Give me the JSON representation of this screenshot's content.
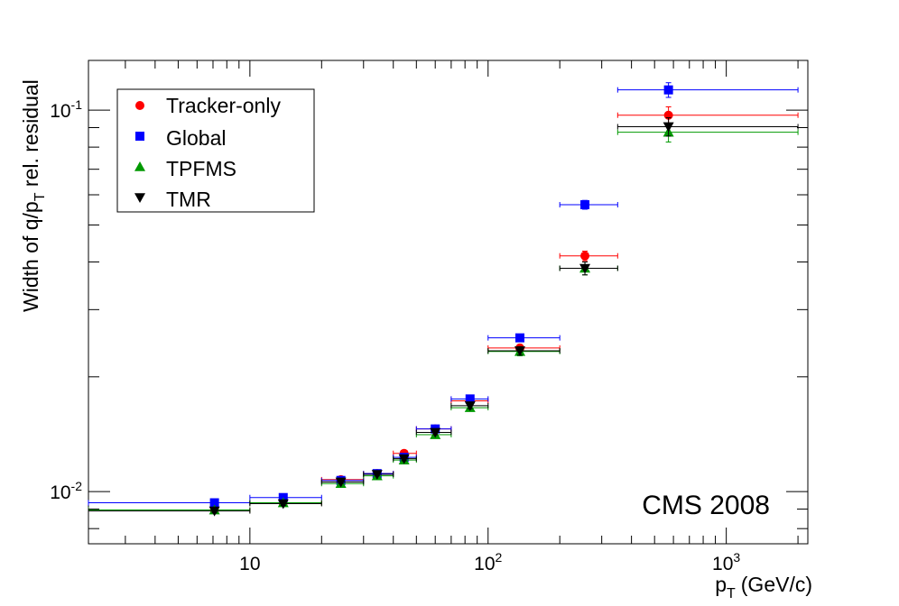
{
  "chart_data": {
    "type": "scatter",
    "title": "",
    "annotation": "CMS 2008",
    "xlabel_main": "p",
    "xlabel_sub": "T",
    "xlabel_units": "(GeV/c)",
    "ylabel_pre": "Width of q/p",
    "ylabel_sub": "T",
    "ylabel_post": " rel. residual",
    "x_scale": "log",
    "y_scale": "log",
    "xlim": [
      2.1,
      2200
    ],
    "ylim": [
      0.0073,
      0.135
    ],
    "x_tick_labels": [
      {
        "value": 10,
        "base": "10",
        "exp": ""
      },
      {
        "value": 100,
        "base": "10",
        "exp": "2"
      },
      {
        "value": 1000,
        "base": "10",
        "exp": "3"
      }
    ],
    "y_tick_labels": [
      {
        "value": 0.01,
        "base": "10",
        "exp": "-2"
      },
      {
        "value": 0.1,
        "base": "10",
        "exp": "-1"
      }
    ],
    "legend_position": "top-left",
    "series": [
      {
        "name": "Tracker-only",
        "marker": "circle",
        "color": "#ff0000",
        "points": [
          {
            "x": 7.1,
            "xlo": 2.1,
            "xhi": 10,
            "y": 0.00895,
            "err": 0.0001
          },
          {
            "x": 13.8,
            "xlo": 10,
            "xhi": 20,
            "y": 0.00935,
            "err": 0.0001
          },
          {
            "x": 24.1,
            "xlo": 20,
            "xhi": 30,
            "y": 0.01075,
            "err": 0.0001
          },
          {
            "x": 34.2,
            "xlo": 30,
            "xhi": 40,
            "y": 0.01115,
            "err": 0.0001
          },
          {
            "x": 44.4,
            "xlo": 40,
            "xhi": 50,
            "y": 0.0126,
            "err": 0.00015
          },
          {
            "x": 60,
            "xlo": 50,
            "xhi": 70,
            "y": 0.0146,
            "err": 0.0002
          },
          {
            "x": 84,
            "xlo": 70,
            "xhi": 100,
            "y": 0.0173,
            "err": 0.0003
          },
          {
            "x": 136,
            "xlo": 100,
            "xhi": 200,
            "y": 0.0238,
            "err": 0.0005
          },
          {
            "x": 255,
            "xlo": 200,
            "xhi": 350,
            "y": 0.0415,
            "err": 0.0012
          },
          {
            "x": 572,
            "xlo": 350,
            "xhi": 2000,
            "y": 0.097,
            "err": 0.005
          }
        ]
      },
      {
        "name": "Global",
        "marker": "square",
        "color": "#0000ff",
        "points": [
          {
            "x": 7.1,
            "xlo": 2.1,
            "xhi": 10,
            "y": 0.00935,
            "err": 0.0001
          },
          {
            "x": 13.8,
            "xlo": 10,
            "xhi": 20,
            "y": 0.00965,
            "err": 0.0001
          },
          {
            "x": 24.1,
            "xlo": 20,
            "xhi": 30,
            "y": 0.0107,
            "err": 0.0001
          },
          {
            "x": 34.2,
            "xlo": 30,
            "xhi": 40,
            "y": 0.01115,
            "err": 0.0001
          },
          {
            "x": 44.4,
            "xlo": 40,
            "xhi": 50,
            "y": 0.0123,
            "err": 0.00015
          },
          {
            "x": 60,
            "xlo": 50,
            "xhi": 70,
            "y": 0.0146,
            "err": 0.0002
          },
          {
            "x": 84,
            "xlo": 70,
            "xhi": 100,
            "y": 0.0175,
            "err": 0.0003
          },
          {
            "x": 136,
            "xlo": 100,
            "xhi": 200,
            "y": 0.0253,
            "err": 0.0005
          },
          {
            "x": 255,
            "xlo": 200,
            "xhi": 350,
            "y": 0.0565,
            "err": 0.0015
          },
          {
            "x": 572,
            "xlo": 350,
            "xhi": 2000,
            "y": 0.113,
            "err": 0.005
          }
        ]
      },
      {
        "name": "TPFMS",
        "marker": "triangle-up",
        "color": "#009900",
        "points": [
          {
            "x": 7.1,
            "xlo": 2.1,
            "xhi": 10,
            "y": 0.00895,
            "err": 0.0001
          },
          {
            "x": 13.8,
            "xlo": 10,
            "xhi": 20,
            "y": 0.00935,
            "err": 0.0001
          },
          {
            "x": 24.1,
            "xlo": 20,
            "xhi": 30,
            "y": 0.0105,
            "err": 0.0001
          },
          {
            "x": 34.2,
            "xlo": 30,
            "xhi": 40,
            "y": 0.011,
            "err": 0.0001
          },
          {
            "x": 44.4,
            "xlo": 40,
            "xhi": 50,
            "y": 0.0121,
            "err": 0.00015
          },
          {
            "x": 60,
            "xlo": 50,
            "xhi": 70,
            "y": 0.0141,
            "err": 0.0002
          },
          {
            "x": 84,
            "xlo": 70,
            "xhi": 100,
            "y": 0.0166,
            "err": 0.0003
          },
          {
            "x": 136,
            "xlo": 100,
            "xhi": 200,
            "y": 0.0233,
            "err": 0.0006
          },
          {
            "x": 255,
            "xlo": 200,
            "xhi": 350,
            "y": 0.0385,
            "err": 0.0015
          },
          {
            "x": 572,
            "xlo": 350,
            "xhi": 2000,
            "y": 0.0875,
            "err": 0.005
          }
        ]
      },
      {
        "name": "TMR",
        "marker": "triangle-down",
        "color": "#000000",
        "points": [
          {
            "x": 7.1,
            "xlo": 2.1,
            "xhi": 10,
            "y": 0.0089,
            "err": 0.0001
          },
          {
            "x": 13.8,
            "xlo": 10,
            "xhi": 20,
            "y": 0.0093,
            "err": 0.0001
          },
          {
            "x": 24.1,
            "xlo": 20,
            "xhi": 30,
            "y": 0.0106,
            "err": 0.0001
          },
          {
            "x": 34.2,
            "xlo": 30,
            "xhi": 40,
            "y": 0.0111,
            "err": 0.0001
          },
          {
            "x": 44.4,
            "xlo": 40,
            "xhi": 50,
            "y": 0.0122,
            "err": 0.00015
          },
          {
            "x": 60,
            "xlo": 50,
            "xhi": 70,
            "y": 0.0143,
            "err": 0.0002
          },
          {
            "x": 84,
            "xlo": 70,
            "xhi": 100,
            "y": 0.0168,
            "err": 0.0003
          },
          {
            "x": 136,
            "xlo": 100,
            "xhi": 200,
            "y": 0.0234,
            "err": 0.0006
          },
          {
            "x": 255,
            "xlo": 200,
            "xhi": 350,
            "y": 0.0385,
            "err": 0.0015
          },
          {
            "x": 572,
            "xlo": 350,
            "xhi": 2000,
            "y": 0.0905,
            "err": 0.005
          }
        ]
      }
    ]
  }
}
